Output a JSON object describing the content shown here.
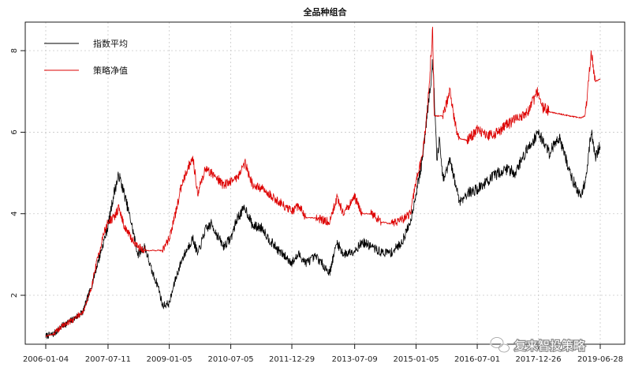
{
  "chart_data": {
    "type": "line",
    "title": "全品种组合",
    "xlabel": "",
    "ylabel": "",
    "x_tick_labels": [
      "2006-01-04",
      "2007-07-11",
      "2009-01-05",
      "2010-07-05",
      "2011-12-29",
      "2013-07-09",
      "2015-01-05",
      "2016-07-01",
      "2017-12-26",
      "2019-06-28"
    ],
    "x_range": [
      "2006-01-04",
      "2019-06-28"
    ],
    "ylim": [
      0.8,
      8.7
    ],
    "y_ticks": [
      2,
      4,
      6,
      8
    ],
    "grid": true,
    "legend_position": "top-left",
    "series": [
      {
        "name": "指数平均",
        "color": "#000000",
        "x": [
          "2006-01-04",
          "2006-03-15",
          "2006-06-01",
          "2006-09-01",
          "2006-12-01",
          "2007-02-01",
          "2007-04-01",
          "2007-06-01",
          "2007-07-11",
          "2007-09-01",
          "2007-10-15",
          "2007-12-01",
          "2008-02-01",
          "2008-04-01",
          "2008-06-01",
          "2008-08-01",
          "2008-10-01",
          "2008-11-05",
          "2009-01-05",
          "2009-03-01",
          "2009-05-01",
          "2009-08-01",
          "2009-09-15",
          "2009-11-20",
          "2010-01-15",
          "2010-03-01",
          "2010-05-01",
          "2010-07-05",
          "2010-09-01",
          "2010-11-10",
          "2011-01-15",
          "2011-04-15",
          "2011-06-01",
          "2011-09-01",
          "2011-12-29",
          "2012-03-01",
          "2012-05-01",
          "2012-08-01",
          "2012-11-28",
          "2013-02-01",
          "2013-04-01",
          "2013-07-09",
          "2013-09-15",
          "2013-12-01",
          "2014-03-01",
          "2014-06-01",
          "2014-09-01",
          "2014-11-15",
          "2015-01-05",
          "2015-03-01",
          "2015-04-15",
          "2015-06-01",
          "2015-06-15",
          "2015-07-08",
          "2015-08-01",
          "2015-09-01",
          "2015-11-01",
          "2016-01-01",
          "2016-01-28",
          "2016-04-01",
          "2016-07-01",
          "2016-10-01",
          "2017-01-01",
          "2017-04-01",
          "2017-06-01",
          "2017-09-01",
          "2017-12-26",
          "2018-02-01",
          "2018-04-01",
          "2018-07-01",
          "2018-10-01",
          "2019-01-03",
          "2019-02-15",
          "2019-04-08",
          "2019-05-15",
          "2019-06-28"
        ],
        "values": [
          1.0,
          1.05,
          1.25,
          1.4,
          1.6,
          2.1,
          2.7,
          3.3,
          3.7,
          4.5,
          4.95,
          4.5,
          3.8,
          3.0,
          3.2,
          2.6,
          2.2,
          1.75,
          1.8,
          2.4,
          2.9,
          3.4,
          3.0,
          3.6,
          3.75,
          3.5,
          3.2,
          3.4,
          3.9,
          4.15,
          3.7,
          3.65,
          3.4,
          3.1,
          2.8,
          3.0,
          2.8,
          2.95,
          2.55,
          3.3,
          3.0,
          3.1,
          3.3,
          3.2,
          3.05,
          3.05,
          3.3,
          3.8,
          4.5,
          5.3,
          6.5,
          7.7,
          7.0,
          5.3,
          5.8,
          4.8,
          5.3,
          4.6,
          4.3,
          4.5,
          4.6,
          4.8,
          5.0,
          5.1,
          5.0,
          5.5,
          6.0,
          5.8,
          5.5,
          5.9,
          5.0,
          4.4,
          4.8,
          6.0,
          5.4,
          5.65
        ]
      },
      {
        "name": "策略净值",
        "color": "#dd0000",
        "x": [
          "2006-01-04",
          "2006-03-15",
          "2006-06-01",
          "2006-09-01",
          "2006-12-01",
          "2007-02-01",
          "2007-04-01",
          "2007-06-01",
          "2007-07-11",
          "2007-09-01",
          "2007-10-15",
          "2007-12-01",
          "2008-02-01",
          "2008-04-01",
          "2008-06-01",
          "2008-08-01",
          "2008-10-01",
          "2008-11-05",
          "2009-01-05",
          "2009-03-01",
          "2009-05-01",
          "2009-08-01",
          "2009-09-15",
          "2009-11-20",
          "2010-01-15",
          "2010-03-01",
          "2010-05-01",
          "2010-07-05",
          "2010-09-01",
          "2010-11-10",
          "2011-01-15",
          "2011-04-15",
          "2011-06-01",
          "2011-09-01",
          "2011-12-29",
          "2012-03-01",
          "2012-05-01",
          "2012-08-01",
          "2012-11-28",
          "2013-02-01",
          "2013-04-01",
          "2013-07-09",
          "2013-09-15",
          "2013-12-01",
          "2014-03-01",
          "2014-06-01",
          "2014-09-01",
          "2014-11-15",
          "2015-01-05",
          "2015-03-01",
          "2015-04-15",
          "2015-06-01",
          "2015-06-15",
          "2015-07-08",
          "2015-08-01",
          "2015-09-01",
          "2015-11-01",
          "2016-01-01",
          "2016-01-28",
          "2016-04-01",
          "2016-07-01",
          "2016-10-01",
          "2017-01-01",
          "2017-04-01",
          "2017-06-01",
          "2017-09-01",
          "2017-12-26",
          "2018-02-01",
          "2018-04-01",
          "2018-07-01",
          "2018-10-01",
          "2019-01-03",
          "2019-02-15",
          "2019-04-08",
          "2019-05-15",
          "2019-06-28"
        ],
        "values": [
          1.0,
          1.05,
          1.25,
          1.4,
          1.6,
          2.05,
          2.8,
          3.5,
          3.8,
          3.9,
          4.15,
          3.7,
          3.4,
          3.2,
          3.1,
          3.1,
          3.1,
          3.1,
          3.4,
          4.0,
          4.8,
          5.4,
          4.5,
          5.1,
          5.0,
          4.9,
          4.7,
          4.8,
          4.9,
          5.25,
          4.7,
          4.6,
          4.5,
          4.3,
          4.05,
          4.2,
          3.9,
          3.9,
          3.8,
          4.4,
          4.0,
          4.4,
          4.0,
          4.0,
          3.8,
          3.75,
          3.85,
          4.0,
          4.8,
          5.4,
          6.5,
          8.5,
          6.4,
          6.4,
          6.4,
          6.4,
          7.0,
          6.0,
          5.85,
          5.8,
          6.05,
          5.9,
          6.0,
          6.2,
          6.3,
          6.4,
          7.0,
          6.6,
          6.5,
          6.45,
          6.4,
          6.35,
          6.4,
          8.0,
          7.25,
          7.3
        ]
      }
    ]
  },
  "watermark": {
    "icon": "wechat-icon",
    "text": "复来智投策略"
  }
}
